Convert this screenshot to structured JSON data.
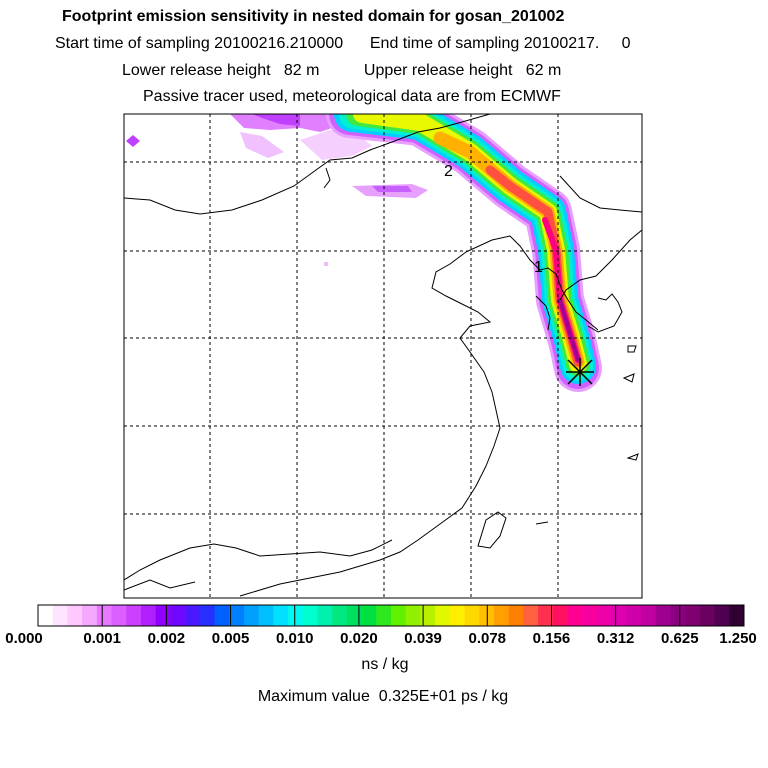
{
  "header": {
    "title": "Footprint emission sensitivity in nested domain for gosan_201002",
    "sampling_line": "Start time of sampling 20100216.210000      End time of sampling 20100217.     0",
    "release_line": "Lower release height   82 m          Upper release height   62 m",
    "tracer_line": "Passive tracer used, meteorological data are from ECMWF"
  },
  "map": {
    "labels": [
      "2",
      "1"
    ],
    "station_marker": "receptor-star"
  },
  "colorbar": {
    "ticks": [
      "0.000",
      "0.001",
      "0.002",
      "0.005",
      "0.010",
      "0.020",
      "0.039",
      "0.078",
      "0.156",
      "0.312",
      "0.625",
      "1.250"
    ],
    "colors": [
      "#ffffff",
      "#ffe4ff",
      "#ffc8ff",
      "#f5a8ff",
      "#e878ff",
      "#dc60ff",
      "#cc40ff",
      "#b020ff",
      "#9000ff",
      "#7008ff",
      "#4a18ff",
      "#2830ff",
      "#0060ff",
      "#0080ff",
      "#00a0ff",
      "#00c0ff",
      "#00e0ff",
      "#00f8f0",
      "#00ffd0",
      "#00f0b0",
      "#00e880",
      "#00e060",
      "#00e040",
      "#30e820",
      "#60f000",
      "#90f000",
      "#b8f000",
      "#e0f800",
      "#fff000",
      "#ffd800",
      "#ffc000",
      "#ffa000",
      "#ff8000",
      "#ff6040",
      "#ff3050",
      "#ff1060",
      "#ff0090",
      "#f800a0",
      "#ee00a8",
      "#e000b0",
      "#d000a8",
      "#c000a0",
      "#a00090",
      "#8a0080",
      "#800070",
      "#6a0060",
      "#500050",
      "#300030"
    ],
    "units": "ns / kg"
  },
  "footer": {
    "max_value": "Maximum value  0.325E+01 ps / kg"
  }
}
